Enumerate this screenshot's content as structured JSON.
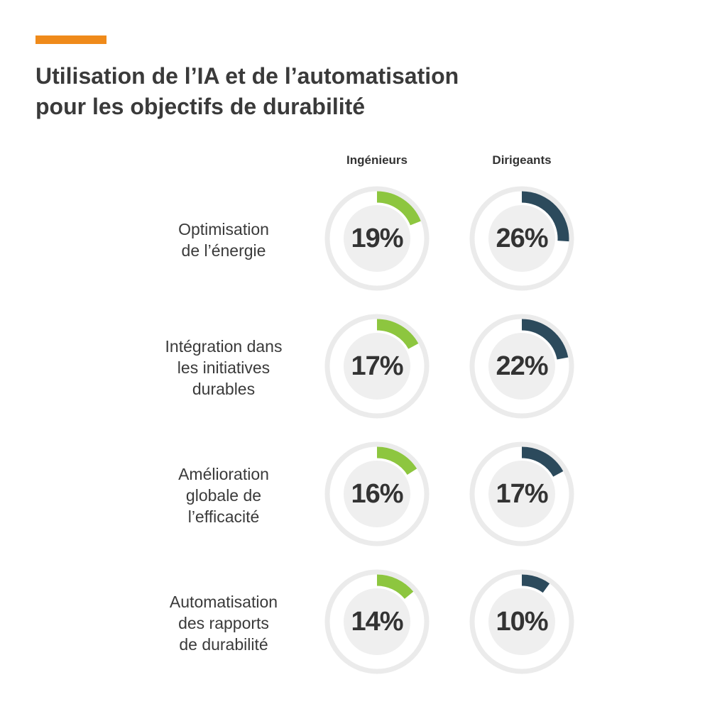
{
  "title_lines": [
    "Utilisation de l’IA et de l’automatisation",
    "pour les objectifs de durabilité"
  ],
  "colors": {
    "accent": "#ef8a1a",
    "ingenieurs": "#8dc63f",
    "dirigeants": "#2c4a5c",
    "ring": "#ebebeb",
    "inner": "#efefef"
  },
  "chart_data": {
    "type": "donut",
    "series": [
      {
        "name": "Ingénieurs",
        "values": [
          19,
          17,
          16,
          14
        ],
        "labels": [
          "19%",
          "17%",
          "16%",
          "14%"
        ]
      },
      {
        "name": "Dirigeants",
        "values": [
          26,
          22,
          17,
          10
        ],
        "labels": [
          "26%",
          "22%",
          "17%",
          "10%"
        ]
      }
    ],
    "categories": [
      [
        "Optimisation",
        "de l’énergie"
      ],
      [
        "Intégration dans",
        "les initiatives",
        "durables"
      ],
      [
        "Amélioration",
        "globale de",
        "l’efficacité"
      ],
      [
        "Automatisation",
        "des rapports",
        "de durabilité"
      ]
    ],
    "unit": "%",
    "max": 100
  }
}
